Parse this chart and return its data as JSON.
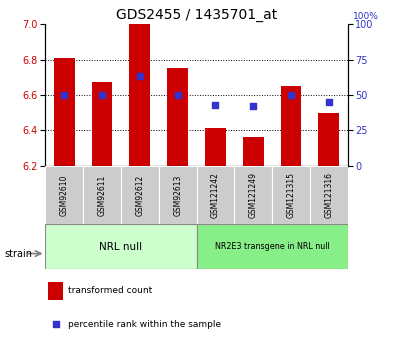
{
  "title": "GDS2455 / 1435701_at",
  "samples": [
    "GSM92610",
    "GSM92611",
    "GSM92612",
    "GSM92613",
    "GSM121242",
    "GSM121249",
    "GSM121315",
    "GSM121316"
  ],
  "bar_values": [
    6.81,
    6.67,
    7.0,
    6.75,
    6.41,
    6.36,
    6.65,
    6.5
  ],
  "bar_bottom": 6.2,
  "percentile_values": [
    50,
    50,
    63,
    50,
    43,
    42,
    50,
    45
  ],
  "group1_label": "NRL null",
  "group2_label": "NR2E3 transgene in NRL null",
  "group1_count": 4,
  "group2_count": 4,
  "ylim_left": [
    6.2,
    7.0
  ],
  "ylim_right": [
    0,
    100
  ],
  "yticks_left": [
    6.2,
    6.4,
    6.6,
    6.8,
    7.0
  ],
  "yticks_right": [
    0,
    25,
    50,
    75,
    100
  ],
  "grid_values": [
    6.4,
    6.6,
    6.8
  ],
  "bar_color": "#cc0000",
  "percentile_color": "#3333cc",
  "group1_color": "#ccffcc",
  "group2_color": "#88ee88",
  "tick_label_bg": "#cccccc",
  "strain_label": "strain",
  "legend_bar_label": "transformed count",
  "legend_pct_label": "percentile rank within the sample",
  "right_axis_label": "100%",
  "title_fontsize": 10,
  "tick_fontsize": 7,
  "label_fontsize": 7
}
